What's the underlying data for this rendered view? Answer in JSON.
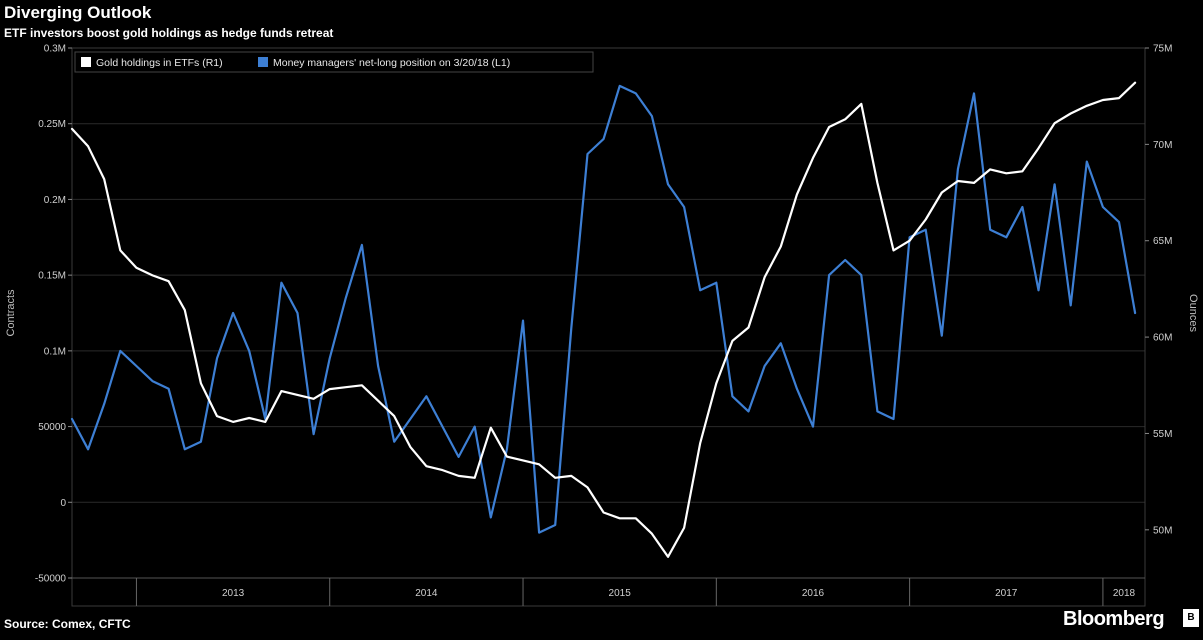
{
  "header": {
    "title": "Diverging Outlook",
    "subtitle": "ETF investors boost gold holdings as hedge funds retreat"
  },
  "footer": {
    "source": "Source: Comex, CFTC",
    "brand": "Bloomberg",
    "brand_badge": "B"
  },
  "colors": {
    "background": "#000000",
    "etf_line": "#ffffff",
    "managers_line": "#3d7fd4",
    "grid": "#2a2a2a"
  },
  "chart_data": {
    "type": "line",
    "title": "Diverging Outlook",
    "subtitle": "ETF investors boost gold holdings as hedge funds retreat",
    "x_tick_labels": [
      "2013",
      "2014",
      "2015",
      "2016",
      "2017",
      "2018"
    ],
    "xlim": [
      "2012-09",
      "2018-03-20"
    ],
    "left_axis": {
      "label": "Contracts",
      "ylim": [
        -50000,
        300000
      ],
      "tick_labels": [
        "-50000",
        "0",
        "50000",
        "0.1M",
        "0.15M",
        "0.2M",
        "0.25M",
        "0.3M"
      ],
      "tick_values": [
        -50000,
        0,
        50000,
        100000,
        150000,
        200000,
        250000,
        300000
      ]
    },
    "right_axis": {
      "label": "Ounces",
      "ylim": [
        47500000,
        75000000
      ],
      "tick_labels": [
        "50M",
        "55M",
        "60M",
        "65M",
        "70M",
        "75M"
      ],
      "tick_values": [
        50000000,
        55000000,
        60000000,
        65000000,
        70000000,
        75000000
      ]
    },
    "grid": true,
    "legend": "top-left",
    "series": [
      {
        "name": "Gold holdings in ETFs (R1)",
        "axis": "right",
        "color": "#ffffff",
        "x": [
          "2012-09",
          "2012-10",
          "2012-11",
          "2012-12",
          "2013-01",
          "2013-02",
          "2013-03",
          "2013-04",
          "2013-05",
          "2013-06",
          "2013-07",
          "2013-08",
          "2013-09",
          "2013-10",
          "2013-11",
          "2013-12",
          "2014-01",
          "2014-02",
          "2014-03",
          "2014-04",
          "2014-05",
          "2014-06",
          "2014-07",
          "2014-08",
          "2014-09",
          "2014-10",
          "2014-11",
          "2014-12",
          "2015-01",
          "2015-02",
          "2015-03",
          "2015-04",
          "2015-05",
          "2015-06",
          "2015-07",
          "2015-08",
          "2015-09",
          "2015-10",
          "2015-11",
          "2015-12",
          "2016-01",
          "2016-02",
          "2016-03",
          "2016-04",
          "2016-05",
          "2016-06",
          "2016-07",
          "2016-08",
          "2016-09",
          "2016-10",
          "2016-11",
          "2016-12",
          "2017-01",
          "2017-02",
          "2017-03",
          "2017-04",
          "2017-05",
          "2017-06",
          "2017-07",
          "2017-08",
          "2017-09",
          "2017-10",
          "2017-11",
          "2017-12",
          "2018-01",
          "2018-02",
          "2018-03"
        ],
        "values": [
          70.8,
          69.9,
          68.2,
          64.5,
          63.6,
          63.2,
          62.9,
          61.4,
          57.6,
          55.9,
          55.6,
          55.8,
          55.6,
          57.2,
          57.0,
          56.8,
          57.3,
          57.4,
          57.5,
          56.7,
          55.9,
          54.3,
          53.3,
          53.1,
          52.8,
          52.7,
          55.3,
          53.8,
          53.6,
          53.4,
          52.7,
          52.8,
          52.2,
          50.9,
          50.6,
          50.6,
          49.8,
          48.6,
          50.1,
          54.5,
          57.6,
          59.8,
          60.5,
          63.1,
          64.7,
          67.4,
          69.3,
          70.9,
          71.3,
          72.1,
          68.0,
          64.5,
          65.0,
          66.1,
          67.5,
          68.1,
          68.0,
          68.7,
          68.5,
          68.6,
          69.8,
          71.1,
          71.6,
          72.0,
          72.3,
          72.4,
          73.2
        ]
      },
      {
        "name": "Money managers' net-long position on 3/20/18 (L1)",
        "axis": "left",
        "color": "#3d7fd4",
        "x": [
          "2012-09",
          "2012-10",
          "2012-11",
          "2012-12",
          "2013-01",
          "2013-02",
          "2013-03",
          "2013-04",
          "2013-05",
          "2013-06",
          "2013-07",
          "2013-08",
          "2013-09",
          "2013-10",
          "2013-11",
          "2013-12",
          "2014-01",
          "2014-02",
          "2014-03",
          "2014-04",
          "2014-05",
          "2014-06",
          "2014-07",
          "2014-08",
          "2014-09",
          "2014-10",
          "2014-11",
          "2014-12",
          "2015-01",
          "2015-02",
          "2015-03",
          "2015-04",
          "2015-05",
          "2015-06",
          "2015-07",
          "2015-08",
          "2015-09",
          "2015-10",
          "2015-11",
          "2015-12",
          "2016-01",
          "2016-02",
          "2016-03",
          "2016-04",
          "2016-05",
          "2016-06",
          "2016-07",
          "2016-08",
          "2016-09",
          "2016-10",
          "2016-11",
          "2016-12",
          "2017-01",
          "2017-02",
          "2017-03",
          "2017-04",
          "2017-05",
          "2017-06",
          "2017-07",
          "2017-08",
          "2017-09",
          "2017-10",
          "2017-11",
          "2017-12",
          "2018-01",
          "2018-02",
          "2018-03"
        ],
        "values": [
          55000,
          35000,
          65000,
          100000,
          90000,
          80000,
          75000,
          35000,
          40000,
          95000,
          125000,
          100000,
          55000,
          145000,
          125000,
          45000,
          95000,
          135000,
          170000,
          90000,
          40000,
          55000,
          70000,
          50000,
          30000,
          50000,
          -10000,
          35000,
          120000,
          -20000,
          -15000,
          115000,
          230000,
          240000,
          275000,
          270000,
          255000,
          210000,
          195000,
          140000,
          145000,
          70000,
          60000,
          90000,
          105000,
          75000,
          50000,
          150000,
          160000,
          150000,
          60000,
          55000,
          175000,
          180000,
          110000,
          220000,
          270000,
          180000,
          175000,
          195000,
          140000,
          210000,
          130000,
          225000,
          195000,
          185000,
          125000
        ]
      }
    ]
  },
  "labels": {
    "ylabel_left": "Contracts",
    "ylabel_right": "Ounces",
    "legend_etf": "Gold holdings in ETFs (R1)",
    "legend_managers": "Money managers' net-long position on 3/20/18 (L1)"
  }
}
